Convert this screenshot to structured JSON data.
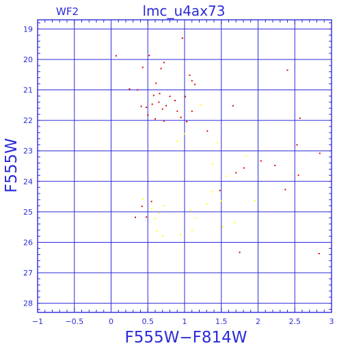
{
  "chart_data": {
    "type": "scatter",
    "title": "lmc_u4ax73",
    "corner_label": "WF2",
    "xlabel": "F555W−F814W",
    "ylabel": "F555W",
    "xlim": [
      -1,
      3
    ],
    "ylim": [
      28.3,
      18.7
    ],
    "y_axis_inverted": true,
    "grid": true,
    "xticks": [
      -1,
      -0.5,
      0,
      0.5,
      1,
      1.5,
      2,
      2.5,
      3
    ],
    "xtick_labels": [
      "−1",
      "−0.5",
      "0",
      "0.5",
      "1",
      "1.5",
      "2",
      "2.5",
      "3"
    ],
    "yticks": [
      19,
      20,
      21,
      22,
      23,
      24,
      25,
      26,
      27,
      28
    ],
    "ytick_labels": [
      "19",
      "20",
      "21",
      "22",
      "23",
      "24",
      "25",
      "26",
      "27",
      "28"
    ],
    "colors": {
      "frame": "#2a2ad8",
      "grid": "#2a2ad8",
      "text": "#2a2ad8"
    },
    "series": [
      {
        "color": "#dd0000",
        "points": [
          [
            0.07,
            19.88
          ],
          [
            0.52,
            19.87
          ],
          [
            0.43,
            20.26
          ],
          [
            0.72,
            20.1
          ],
          [
            0.68,
            20.3
          ],
          [
            0.25,
            20.97
          ],
          [
            0.61,
            20.78
          ],
          [
            0.97,
            19.3
          ],
          [
            1.07,
            20.52
          ],
          [
            1.1,
            20.7
          ],
          [
            1.14,
            20.82
          ],
          [
            1.01,
            21.22
          ],
          [
            2.4,
            20.35
          ],
          [
            1.66,
            21.52
          ],
          [
            2.57,
            21.93
          ],
          [
            0.36,
            21.0
          ],
          [
            0.41,
            21.54
          ],
          [
            0.48,
            21.57
          ],
          [
            0.5,
            21.83
          ],
          [
            0.56,
            21.47
          ],
          [
            0.6,
            21.95
          ],
          [
            0.65,
            21.4
          ],
          [
            0.7,
            21.63
          ],
          [
            0.75,
            21.52
          ],
          [
            0.58,
            21.18
          ],
          [
            0.66,
            21.12
          ],
          [
            0.8,
            21.21
          ],
          [
            0.87,
            21.35
          ],
          [
            0.9,
            21.7
          ],
          [
            0.95,
            21.9
          ],
          [
            1.03,
            22.04
          ],
          [
            1.1,
            21.7
          ],
          [
            0.72,
            22.02
          ],
          [
            1.31,
            22.35
          ],
          [
            2.53,
            22.8
          ],
          [
            2.84,
            23.08
          ],
          [
            2.04,
            23.33
          ],
          [
            2.23,
            23.48
          ],
          [
            2.55,
            23.8
          ],
          [
            2.37,
            24.27
          ],
          [
            2.83,
            26.37
          ],
          [
            1.75,
            26.33
          ],
          [
            0.48,
            25.17
          ],
          [
            0.33,
            25.18
          ],
          [
            0.42,
            24.82
          ],
          [
            0.55,
            24.66
          ],
          [
            1.48,
            24.3
          ],
          [
            1.7,
            23.72
          ],
          [
            1.81,
            23.56
          ]
        ]
      },
      {
        "color": "#ffff00",
        "points": [
          [
            1.22,
            21.49
          ],
          [
            0.9,
            22.68
          ],
          [
            1.0,
            22.44
          ],
          [
            1.45,
            22.74
          ],
          [
            1.38,
            23.43
          ],
          [
            1.57,
            23.83
          ],
          [
            1.37,
            24.34
          ],
          [
            1.84,
            23.18
          ],
          [
            0.43,
            24.58
          ],
          [
            0.55,
            24.9
          ],
          [
            0.6,
            25.22
          ],
          [
            0.66,
            25.05
          ],
          [
            0.72,
            24.8
          ],
          [
            1.08,
            24.94
          ],
          [
            1.15,
            25.2
          ],
          [
            1.3,
            24.75
          ],
          [
            1.5,
            24.64
          ],
          [
            1.96,
            24.63
          ],
          [
            1.52,
            25.49
          ],
          [
            1.68,
            25.35
          ],
          [
            0.62,
            25.62
          ],
          [
            0.7,
            25.8
          ],
          [
            0.95,
            25.75
          ],
          [
            1.1,
            25.6
          ]
        ]
      }
    ]
  }
}
